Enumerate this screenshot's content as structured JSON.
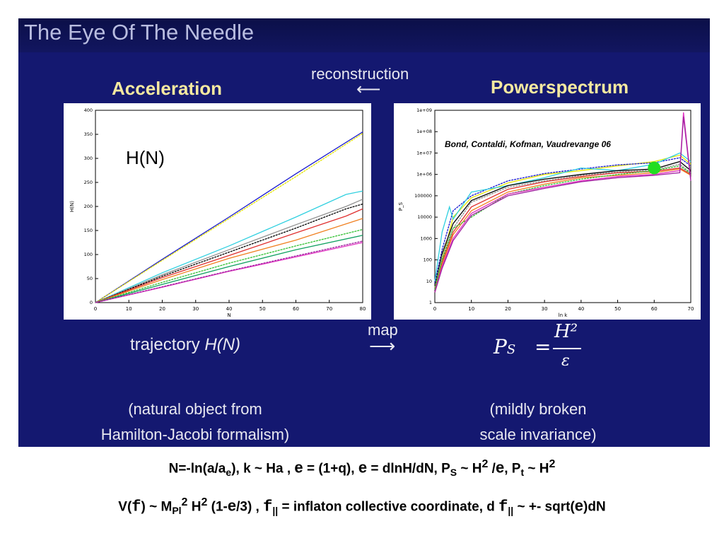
{
  "slide": {
    "title": "The Eye Of The Needle",
    "left_heading": "Acceleration",
    "right_heading": "Powerspectrum",
    "reconstruction_label": "reconstruction",
    "reconstruction_arrow": "⟵",
    "map_label": "map",
    "map_arrow": "⟶",
    "left_caption_prefix": "trajectory ",
    "left_caption_math": "H(N)",
    "right_note_line1": "(mildly broken",
    "right_note_line2": "scale invariance)",
    "left_note_line1": "(natural object from",
    "left_note_line2": "Hamilton-Jacobi formalism)",
    "ps_equation_lhs": "P",
    "ps_equation_sub": "S",
    "ps_equation_eq": "=",
    "ps_equation_num": "H²",
    "ps_equation_den": "ε"
  },
  "footer": {
    "line1": {
      "p1": "N=-ln(a/a",
      "s1": "e",
      "p2": "), k ~ Ha , ",
      "g1": "e",
      "p3": " = (1+q), ",
      "g2": "e",
      "p4": " = dlnH/dN, P",
      "s2": "S",
      "p5": " ~ H",
      "sp1": "2",
      "p6": " /",
      "g3": "e",
      "p7": ", P",
      "s3": "t",
      "p8": " ~ H",
      "sp2": "2"
    },
    "line2": {
      "p1": "V(",
      "m1": "f",
      "p2": ") ~  M",
      "s1": "Pl",
      "sp1": "2",
      "p3": " H",
      "sp2": "2",
      "p4": " (1-",
      "g1": "e",
      "p5": "/3) , ",
      "m2": "f",
      "s2": "||",
      "p6": " = inflaton collective coordinate, d ",
      "m3": "f",
      "s3": "||",
      "p7": " ~ +- sqrt(",
      "g2": "e",
      "p8": ")dN"
    }
  },
  "chart_data": [
    {
      "type": "line",
      "annotation": "H(N)",
      "xlabel": "N",
      "ylabel": "H(N)",
      "xlim": [
        0,
        80
      ],
      "ylim": [
        0,
        400
      ],
      "xticks": [
        "0",
        "10",
        "20",
        "30",
        "40",
        "50",
        "60",
        "70",
        "80"
      ],
      "yticks": [
        "0",
        "50",
        "100",
        "150",
        "200",
        "250",
        "300",
        "350",
        "400"
      ],
      "series": [
        {
          "color": "#1a1ad0",
          "x": [
            0,
            20,
            40,
            60,
            80
          ],
          "y": [
            0,
            90,
            178,
            268,
            355
          ]
        },
        {
          "color": "#e6e600",
          "x": [
            0,
            20,
            40,
            60,
            80
          ],
          "y": [
            0,
            88,
            175,
            262,
            352
          ]
        },
        {
          "color": "#30d0e0",
          "x": [
            0,
            20,
            40,
            60,
            75,
            80
          ],
          "y": [
            0,
            62,
            118,
            178,
            225,
            232
          ]
        },
        {
          "color": "#909090",
          "x": [
            0,
            20,
            40,
            60,
            75,
            80
          ],
          "y": [
            0,
            58,
            110,
            162,
            200,
            215
          ]
        },
        {
          "color": "#000000",
          "x": [
            0,
            20,
            40,
            60,
            75,
            80
          ],
          "y": [
            0,
            55,
            105,
            155,
            195,
            205
          ]
        },
        {
          "color": "#e03030",
          "x": [
            0,
            20,
            40,
            60,
            75,
            80
          ],
          "y": [
            0,
            52,
            98,
            145,
            180,
            195
          ]
        },
        {
          "color": "#f08020",
          "x": [
            0,
            20,
            40,
            60,
            80
          ],
          "y": [
            0,
            48,
            92,
            130,
            175
          ]
        },
        {
          "color": "#30c030",
          "x": [
            0,
            20,
            40,
            60,
            80
          ],
          "y": [
            0,
            42,
            82,
            118,
            152
          ]
        },
        {
          "color": "#10a060",
          "x": [
            0,
            20,
            40,
            60,
            80
          ],
          "y": [
            0,
            38,
            75,
            110,
            140
          ]
        },
        {
          "color": "#e030c0",
          "x": [
            0,
            20,
            40,
            60,
            80
          ],
          "y": [
            0,
            32,
            65,
            95,
            125
          ]
        },
        {
          "color": "#a020a0",
          "x": [
            0,
            20,
            40,
            60,
            80
          ],
          "y": [
            0,
            33,
            66,
            97,
            128
          ]
        }
      ]
    },
    {
      "type": "line",
      "annotation": "Bond, Contaldi, Kofman, Vaudrevange 06",
      "xlabel": "ln k",
      "ylabel": "P_S",
      "xlim": [
        0,
        70
      ],
      "ylim": [
        1,
        1000000000.0
      ],
      "yscale": "log",
      "xticks": [
        "0",
        "10",
        "20",
        "30",
        "40",
        "50",
        "60",
        "70"
      ],
      "yticks": [
        "1",
        "10",
        "100",
        "1000",
        "10000",
        "100000",
        "1e+06",
        "1e+07",
        "1e+08",
        "1e+09"
      ],
      "marker": {
        "color": "#22dd22",
        "x": 60,
        "y": 2000000
      },
      "series": [
        {
          "color": "#e6e600",
          "x": [
            0,
            2,
            5,
            10,
            20,
            30,
            40,
            50,
            60,
            67,
            70
          ],
          "y": [
            5,
            100,
            10000,
            80000,
            400000,
            1000000,
            1500000,
            2500000,
            4000000,
            8000000,
            3000000
          ]
        },
        {
          "color": "#1a1ad0",
          "x": [
            0,
            2,
            5,
            10,
            20,
            30,
            40,
            50,
            60,
            67,
            70
          ],
          "y": [
            8,
            300,
            20000,
            100000,
            500000,
            1100000,
            1800000,
            2800000,
            3500000,
            6000000,
            2500000
          ]
        },
        {
          "color": "#30d0e0",
          "x": [
            0,
            2,
            4,
            5,
            10,
            20,
            30,
            40,
            50,
            60,
            67,
            70
          ],
          "y": [
            10,
            2000,
            30000,
            8000,
            150000,
            300000,
            700000,
            2000000,
            1500000,
            3000000,
            10000000,
            4000000
          ]
        },
        {
          "color": "#000000",
          "x": [
            0,
            2,
            5,
            10,
            20,
            30,
            40,
            50,
            60,
            67,
            70
          ],
          "y": [
            6,
            200,
            5000,
            60000,
            300000,
            600000,
            1000000,
            1500000,
            1800000,
            4000000,
            1500000
          ]
        },
        {
          "color": "#909090",
          "x": [
            0,
            2,
            5,
            10,
            20,
            30,
            40,
            50,
            60,
            67,
            70
          ],
          "y": [
            5,
            150,
            3000,
            50000,
            250000,
            500000,
            900000,
            1300000,
            1600000,
            3000000,
            1200000
          ]
        },
        {
          "color": "#e03030",
          "x": [
            0,
            2,
            5,
            10,
            20,
            30,
            40,
            50,
            60,
            67,
            70
          ],
          "y": [
            4,
            80,
            2000,
            30000,
            200000,
            450000,
            800000,
            1200000,
            1400000,
            2000000,
            1000000
          ]
        },
        {
          "color": "#f08020",
          "x": [
            0,
            2,
            5,
            10,
            20,
            30,
            40,
            50,
            60,
            67,
            70
          ],
          "y": [
            3,
            60,
            1500,
            20000,
            150000,
            350000,
            700000,
            900000,
            1200000,
            1800000,
            900000
          ]
        },
        {
          "color": "#30c030",
          "x": [
            0,
            2,
            5,
            10,
            20,
            30,
            40,
            50,
            60,
            67,
            70
          ],
          "y": [
            4,
            100,
            3000,
            10000,
            120000,
            300000,
            600000,
            1000000,
            1500000,
            2500000,
            1100000
          ]
        },
        {
          "color": "#e030c0",
          "x": [
            0,
            2,
            5,
            10,
            20,
            30,
            40,
            50,
            60,
            67,
            68,
            70
          ],
          "y": [
            3,
            50,
            1000,
            15000,
            120000,
            250000,
            500000,
            800000,
            1000000,
            1500000,
            800000000,
            600000
          ]
        },
        {
          "color": "#a020a0",
          "x": [
            0,
            2,
            5,
            10,
            20,
            30,
            40,
            50,
            60,
            67,
            68,
            70
          ],
          "y": [
            3,
            40,
            800,
            12000,
            100000,
            220000,
            450000,
            700000,
            900000,
            1200000,
            500000000,
            500000
          ]
        }
      ]
    }
  ]
}
